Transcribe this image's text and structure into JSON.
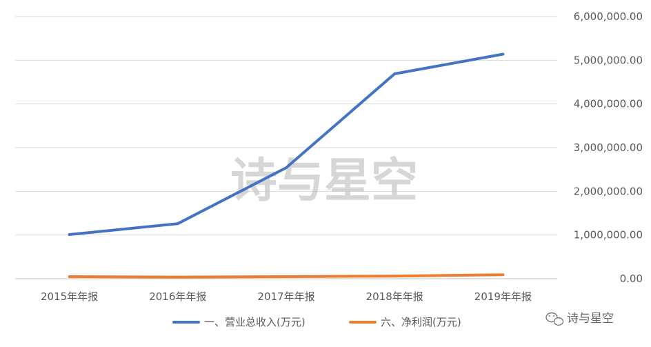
{
  "chart_data": {
    "type": "line",
    "categories": [
      "2015年年报",
      "2016年年报",
      "2017年年报",
      "2018年年报",
      "2019年年报"
    ],
    "series": [
      {
        "name": "一、营业总收入(万元)",
        "color": "#4472C4",
        "values": [
          1010000,
          1260000,
          2540000,
          4690000,
          5140000
        ]
      },
      {
        "name": "六、净利润(万元)",
        "color": "#ED7D31",
        "values": [
          48000,
          38000,
          48000,
          60000,
          92000
        ]
      }
    ],
    "y_ticks": [
      "0.00",
      "1,000,000.00",
      "2,000,000.00",
      "3,000,000.00",
      "4,000,000.00",
      "5,000,000.00",
      "6,000,000.00"
    ],
    "ylim": [
      0,
      6000000
    ],
    "y_axis_side": "right",
    "grid": true,
    "legend_position": "bottom"
  },
  "watermark": {
    "text": "诗与星空"
  },
  "brand": {
    "label": "诗与星空",
    "icon": "wechat-icon"
  }
}
